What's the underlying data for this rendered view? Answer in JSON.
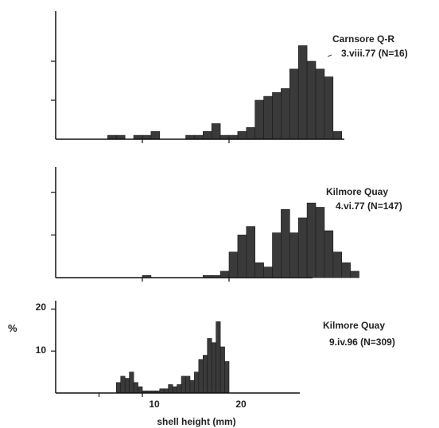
{
  "chart_data": [
    {
      "type": "bar",
      "title": "",
      "annotation_line1": "Carnsore Q-R",
      "annotation_line2": "3.viii.77 (N=16)",
      "xlabel": "",
      "ylabel": "",
      "bin_start": 0,
      "bin_width": 1,
      "values": [
        0,
        0,
        0,
        0,
        0,
        0,
        0.5,
        0.5,
        0,
        0.5,
        0.5,
        1,
        0,
        0,
        0,
        0.5,
        0.5,
        1,
        2,
        0.5,
        0.5,
        1,
        1.5,
        5,
        5.5,
        6,
        6.5,
        9,
        12,
        10,
        9,
        8,
        1,
        0,
        0,
        0
      ],
      "xlim": [
        0,
        36
      ],
      "ylim": [
        0,
        15
      ],
      "yticks": [
        5,
        10
      ],
      "show_ytick_labels": false,
      "xticks": [
        10,
        20
      ],
      "show_xtick_labels": false,
      "grid": false
    },
    {
      "type": "bar",
      "title": "",
      "annotation_line1": "Kilmore Quay",
      "annotation_line2": "4.vi.77 (N=147)",
      "xlabel": "",
      "ylabel": "",
      "bin_start": 0,
      "bin_width": 1,
      "values": [
        0,
        0,
        0,
        0,
        0,
        0,
        0,
        0,
        0,
        0,
        0.5,
        0,
        0,
        0,
        0,
        0,
        0,
        0.5,
        0.5,
        1.5,
        6,
        10,
        12,
        3.5,
        2.5,
        10.5,
        16,
        10.5,
        14,
        17.5,
        16.5,
        11,
        6,
        3.5,
        1.5,
        0
      ],
      "xlim": [
        0,
        36
      ],
      "ylim": [
        0,
        22
      ],
      "yticks": [
        10,
        20
      ],
      "show_ytick_labels": false,
      "xticks": [
        10,
        20
      ],
      "show_xtick_labels": false,
      "grid": false
    },
    {
      "type": "bar",
      "title": "",
      "annotation_line1": "Kilmore Quay",
      "annotation_line2": "9.iv.96 (N=309)",
      "xlabel": "shell height (mm)",
      "ylabel": "%",
      "bin_start": 0,
      "bin_width": 1,
      "values": [
        0,
        0,
        0,
        0,
        0,
        0,
        0,
        0,
        0,
        0,
        0,
        0,
        0,
        0,
        2.5,
        4,
        3.5,
        5,
        2.5,
        1.5,
        0.5,
        0.5,
        0.5,
        0.5,
        1,
        1,
        2,
        1.5,
        2,
        4,
        4,
        3,
        5,
        8,
        9,
        13,
        12,
        17,
        11,
        7.5
      ],
      "xlim": [
        0,
        44
      ],
      "ylim": [
        0,
        22
      ],
      "yticks": [
        10,
        20
      ],
      "show_ytick_labels": true,
      "xticks": [
        10,
        20
      ],
      "show_xtick_labels": true,
      "grid": false
    }
  ],
  "colors": {
    "bar_fill": "#3a3a3a",
    "bar_stroke": "#1a1a1a",
    "axis": "#111111"
  },
  "tick_label_10": "10",
  "tick_label_20": "20",
  "ytick_label_10": "10",
  "ytick_label_20": "20"
}
